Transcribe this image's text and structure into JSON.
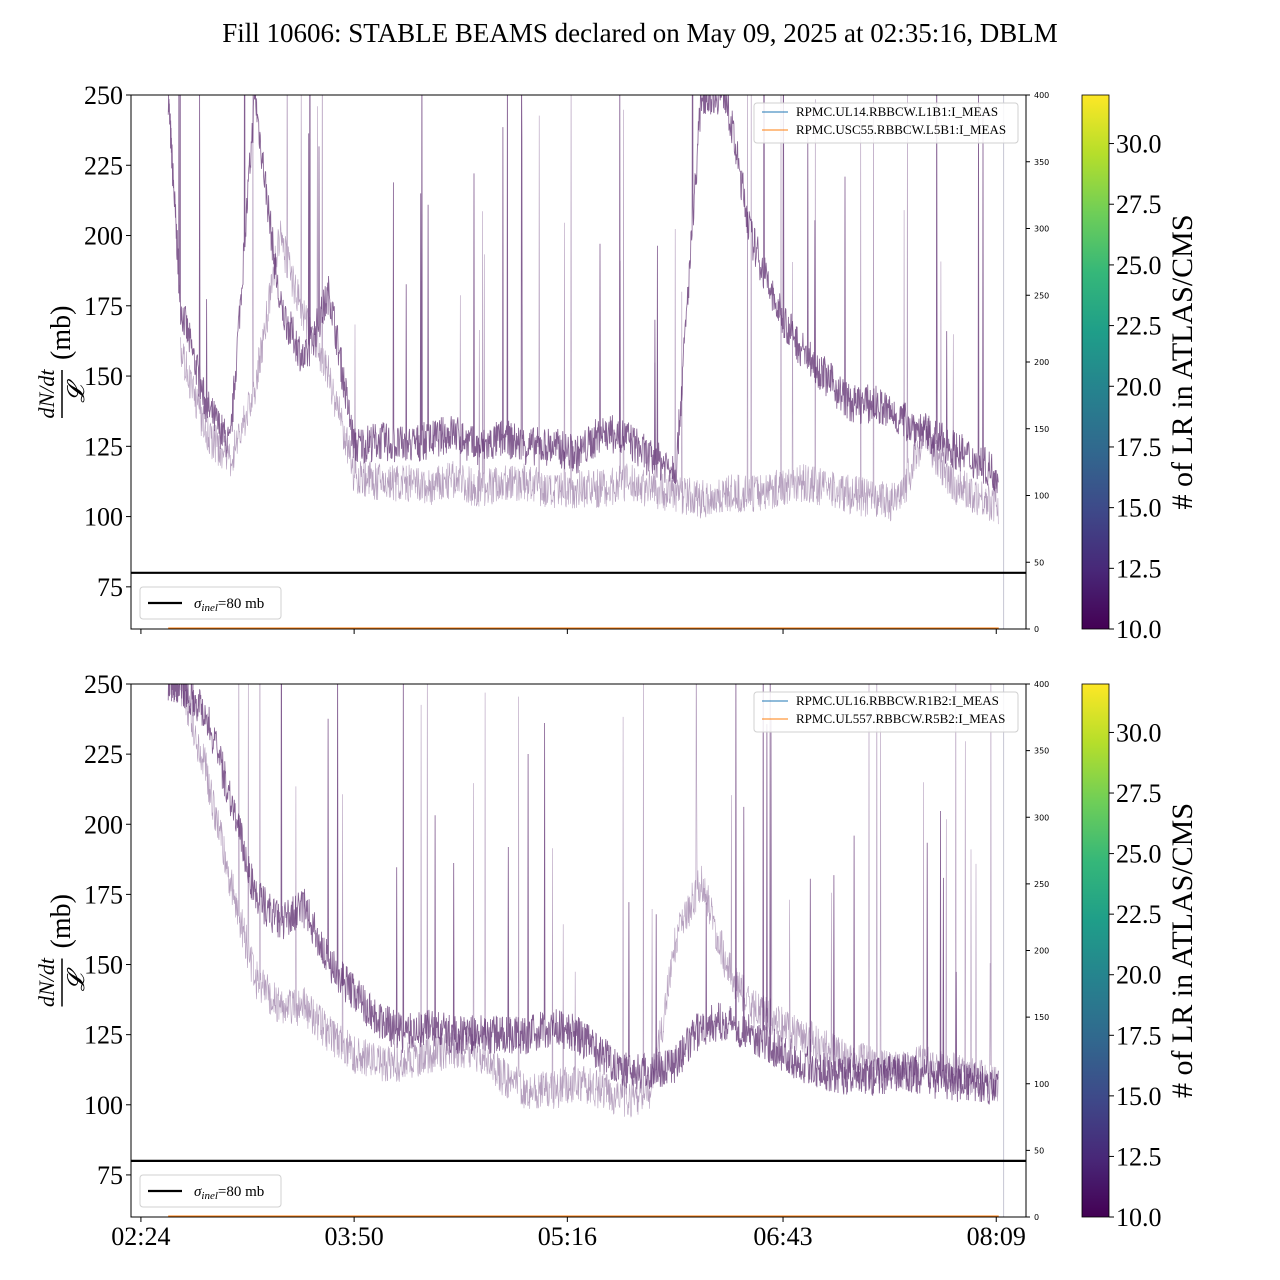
{
  "title": "Fill 10606: STABLE BEAMS declared on May 09, 2025 at 02:35:16, DBLM",
  "chart_data": [
    {
      "type": "line",
      "panel": "top",
      "ylabel_expr": "dN/dt / 𝓛",
      "ylabel_unit": "(mb)",
      "ylim": [
        60,
        250
      ],
      "yticks": [
        75,
        100,
        125,
        150,
        175,
        200,
        225,
        250
      ],
      "right_ylim": [
        0,
        400
      ],
      "right_yticks": [
        0,
        50,
        100,
        150,
        200,
        250,
        300,
        350,
        400
      ],
      "xlim": [
        "02:20",
        "08:21"
      ],
      "xticks": [
        "02:24",
        "03:50",
        "05:16",
        "06:43",
        "08:09"
      ],
      "show_xtick_labels": false,
      "legend_upper": [
        "RPMC.UL14.RBBCW.L1B1:I_MEAS",
        "RPMC.USC55.RBBCW.L5B1:I_MEAS"
      ],
      "legend_upper_colors": [
        "#1f77b4",
        "#ff7f0e"
      ],
      "legend_lower": "σ_inel=80 mb",
      "reference_line": 80,
      "trace_color": "#5b2a6e",
      "series": [
        {
          "x": [
            "02:35",
            "02:40",
            "02:50",
            "03:00",
            "03:10",
            "03:20",
            "03:30",
            "03:40",
            "03:50",
            "04:00",
            "04:10",
            "04:20",
            "04:30",
            "04:40",
            "04:50",
            "05:00",
            "05:10",
            "05:20",
            "05:30",
            "05:40",
            "05:50",
            "06:00",
            "06:10",
            "06:20",
            "06:30",
            "06:40",
            "06:50",
            "07:00",
            "07:10",
            "07:20",
            "07:30",
            "07:40",
            "07:50",
            "08:00",
            "08:10"
          ],
          "y": [
            250,
            175,
            140,
            125,
            250,
            175,
            155,
            180,
            125,
            127,
            125,
            127,
            130,
            124,
            128,
            125,
            125,
            122,
            130,
            128,
            120,
            118,
            250,
            250,
            200,
            175,
            160,
            150,
            140,
            140,
            135,
            130,
            125,
            120,
            115
          ]
        },
        {
          "x": [
            "02:40",
            "02:50",
            "03:00",
            "03:10",
            "03:20",
            "03:30",
            "03:40",
            "03:50",
            "04:00",
            "04:10",
            "04:20",
            "04:30",
            "04:40",
            "04:50",
            "05:00",
            "05:10",
            "05:20",
            "05:30",
            "05:40",
            "05:50",
            "06:00",
            "06:10",
            "06:20",
            "06:30",
            "06:40",
            "06:50",
            "07:00",
            "07:10",
            "07:20",
            "07:30",
            "07:40",
            "07:50",
            "08:00",
            "08:10"
          ],
          "y": [
            160,
            130,
            120,
            145,
            200,
            170,
            150,
            115,
            112,
            112,
            110,
            113,
            110,
            112,
            112,
            108,
            110,
            110,
            112,
            110,
            108,
            106,
            108,
            108,
            110,
            112,
            110,
            108,
            106,
            105,
            130,
            112,
            108,
            104
          ]
        }
      ]
    },
    {
      "type": "line",
      "panel": "bottom",
      "ylabel_expr": "dN/dt / 𝓛",
      "ylabel_unit": "(mb)",
      "ylim": [
        60,
        250
      ],
      "yticks": [
        75,
        100,
        125,
        150,
        175,
        200,
        225,
        250
      ],
      "right_ylim": [
        0,
        400
      ],
      "right_yticks": [
        0,
        50,
        100,
        150,
        200,
        250,
        300,
        350,
        400
      ],
      "xlim": [
        "02:20",
        "08:21"
      ],
      "xticks": [
        "02:24",
        "03:50",
        "05:16",
        "06:43",
        "08:09"
      ],
      "show_xtick_labels": true,
      "legend_upper": [
        "RPMC.UL16.RBBCW.R1B2:I_MEAS",
        "RPMC.UL557.RBBCW.R5B2:I_MEAS"
      ],
      "legend_upper_colors": [
        "#1f77b4",
        "#ff7f0e"
      ],
      "legend_lower": "σ_inel=80 mb",
      "reference_line": 80,
      "trace_color": "#5b2a6e",
      "series": [
        {
          "x": [
            "02:35",
            "02:40",
            "02:50",
            "03:00",
            "03:10",
            "03:20",
            "03:30",
            "03:40",
            "03:50",
            "04:00",
            "04:10",
            "04:20",
            "04:30",
            "04:40",
            "04:50",
            "05:00",
            "05:10",
            "05:20",
            "05:30",
            "05:40",
            "05:50",
            "06:00",
            "06:10",
            "06:20",
            "06:30",
            "06:40",
            "06:50",
            "07:00",
            "07:10",
            "07:20",
            "07:30",
            "07:40",
            "07:50",
            "08:00",
            "08:10"
          ],
          "y": [
            250,
            250,
            240,
            210,
            175,
            165,
            170,
            150,
            140,
            130,
            125,
            128,
            125,
            125,
            125,
            125,
            128,
            125,
            118,
            112,
            112,
            115,
            128,
            130,
            125,
            120,
            115,
            112,
            110,
            110,
            112,
            110,
            108,
            108,
            106
          ]
        },
        {
          "x": [
            "02:40",
            "02:50",
            "03:00",
            "03:10",
            "03:20",
            "03:30",
            "03:40",
            "03:50",
            "04:00",
            "04:10",
            "04:20",
            "04:30",
            "04:40",
            "04:50",
            "05:00",
            "05:10",
            "05:20",
            "05:30",
            "05:40",
            "05:50",
            "06:00",
            "06:10",
            "06:20",
            "06:30",
            "06:40",
            "06:50",
            "07:00",
            "07:10",
            "07:20",
            "07:30",
            "07:40",
            "07:50",
            "08:00",
            "08:10"
          ],
          "y": [
            250,
            220,
            180,
            145,
            135,
            135,
            125,
            118,
            115,
            115,
            118,
            120,
            118,
            110,
            105,
            105,
            108,
            105,
            102,
            105,
            160,
            180,
            150,
            135,
            130,
            125,
            120,
            115,
            115,
            112,
            115,
            112,
            110,
            108
          ]
        }
      ]
    }
  ],
  "colorbar": {
    "label": "# of LR in ATLAS/CMS",
    "range": [
      10.0,
      32.0
    ],
    "ticks": [
      "10.0",
      "12.5",
      "15.0",
      "17.5",
      "20.0",
      "22.5",
      "25.0",
      "27.5",
      "30.0"
    ],
    "colormap": "viridis",
    "stops": [
      "#440154",
      "#482878",
      "#3e4989",
      "#31688e",
      "#26828e",
      "#1f9e89",
      "#35b779",
      "#6ece58",
      "#b5de2b",
      "#fde725"
    ]
  }
}
